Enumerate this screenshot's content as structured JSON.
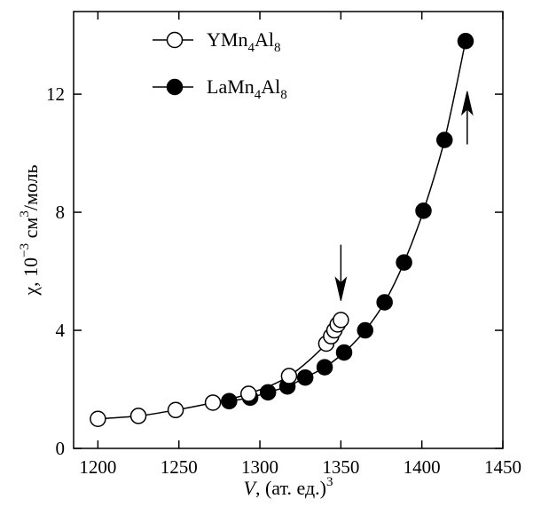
{
  "chart_data": {
    "type": "scatter",
    "xlim": [
      1185,
      1450
    ],
    "ylim": [
      0,
      14.8
    ],
    "xticks": [
      1200,
      1250,
      1300,
      1350,
      1400,
      1450
    ],
    "yticks": [
      0,
      4,
      8,
      12
    ],
    "xtick_labels": [
      "1200",
      "1250",
      "1300",
      "1350",
      "1400",
      "1450"
    ],
    "ytick_labels": [
      "0",
      "4",
      "8",
      "12"
    ],
    "xlabel": {
      "var": "V",
      "text": ", (ат. ед.)",
      "sup": "3"
    },
    "ylabel": {
      "var": "χ",
      "text_a": ", 10",
      "sup_a": "−3",
      "text_b": " см",
      "sup_b": "3",
      "text_c": "/моль"
    },
    "legend": {
      "placement": "top-left",
      "entries": [
        {
          "base": "YMn",
          "sub1": "4",
          "mid": "Al",
          "sub2": "8",
          "marker": "open"
        },
        {
          "base": "LaMn",
          "sub1": "4",
          "mid": "Al",
          "sub2": "8",
          "marker": "filled"
        }
      ]
    },
    "series": [
      {
        "compound": "YMn4Al8",
        "marker": "open",
        "points": [
          [
            1200,
            1.0
          ],
          [
            1225,
            1.1
          ],
          [
            1248,
            1.3
          ],
          [
            1271,
            1.55
          ],
          [
            1293,
            1.85
          ],
          [
            1318,
            2.45
          ],
          [
            1341,
            3.55
          ],
          [
            1344,
            3.8
          ],
          [
            1346,
            4.0
          ],
          [
            1348,
            4.2
          ],
          [
            1350,
            4.35
          ]
        ],
        "curve": [
          [
            1200,
            1.0
          ],
          [
            1225,
            1.1
          ],
          [
            1248,
            1.3
          ],
          [
            1271,
            1.55
          ],
          [
            1293,
            1.85
          ],
          [
            1318,
            2.45
          ],
          [
            1341,
            3.55
          ],
          [
            1350,
            4.35
          ]
        ]
      },
      {
        "compound": "LaMn4Al8",
        "marker": "filled",
        "points": [
          [
            1281,
            1.6
          ],
          [
            1294,
            1.72
          ],
          [
            1305,
            1.9
          ],
          [
            1317,
            2.1
          ],
          [
            1328,
            2.4
          ],
          [
            1340,
            2.75
          ],
          [
            1352,
            3.25
          ],
          [
            1365,
            4.0
          ],
          [
            1377,
            4.95
          ],
          [
            1389,
            6.3
          ],
          [
            1401,
            8.05
          ],
          [
            1414,
            10.45
          ],
          [
            1427,
            13.8
          ]
        ],
        "curve": [
          [
            1281,
            1.6
          ],
          [
            1294,
            1.72
          ],
          [
            1305,
            1.9
          ],
          [
            1317,
            2.1
          ],
          [
            1328,
            2.4
          ],
          [
            1340,
            2.75
          ],
          [
            1352,
            3.25
          ],
          [
            1365,
            4.0
          ],
          [
            1377,
            4.95
          ],
          [
            1389,
            6.3
          ],
          [
            1401,
            8.05
          ],
          [
            1414,
            10.45
          ],
          [
            1427,
            13.8
          ]
        ]
      }
    ],
    "annotations": [
      {
        "type": "arrow",
        "direction": "down",
        "x": 1350,
        "y_from": 6.9,
        "y_to": 5.0
      },
      {
        "type": "arrow",
        "direction": "up",
        "x": 1428,
        "y_from": 10.3,
        "y_to": 12.1
      }
    ],
    "colors": {
      "axis": "#000000",
      "marker_fill": "#000000",
      "open_fill": "#ffffff"
    }
  }
}
